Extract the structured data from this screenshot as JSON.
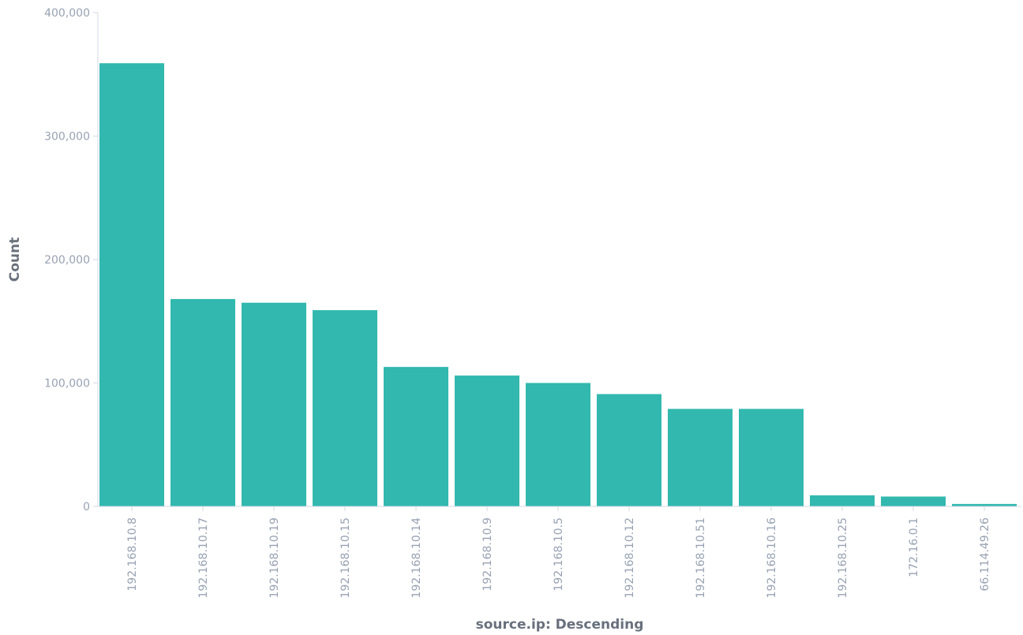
{
  "chart_data": {
    "type": "bar",
    "title": "",
    "xlabel": "source.ip: Descending",
    "ylabel": "Count",
    "ylim": [
      0,
      400000
    ],
    "yticks": [
      0,
      100000,
      200000,
      300000,
      400000
    ],
    "ytick_labels": [
      "0",
      "100,000",
      "200,000",
      "300,000",
      "400,000"
    ],
    "categories": [
      "192.168.10.8",
      "192.168.10.17",
      "192.168.10.19",
      "192.168.10.15",
      "192.168.10.14",
      "192.168.10.9",
      "192.168.10.5",
      "192.168.10.12",
      "192.168.10.51",
      "192.168.10.16",
      "192.168.10.25",
      "172.16.0.1",
      "66.114.49.26"
    ],
    "values": [
      359000,
      168000,
      165000,
      159000,
      113000,
      106000,
      100000,
      91000,
      79000,
      79000,
      9000,
      8000,
      2000
    ],
    "grid": false,
    "legend": "none",
    "bar_color": "#32b8ae",
    "axis_color": "#d3dae6",
    "label_color": "#98a2b3",
    "title_color": "#69707d"
  }
}
